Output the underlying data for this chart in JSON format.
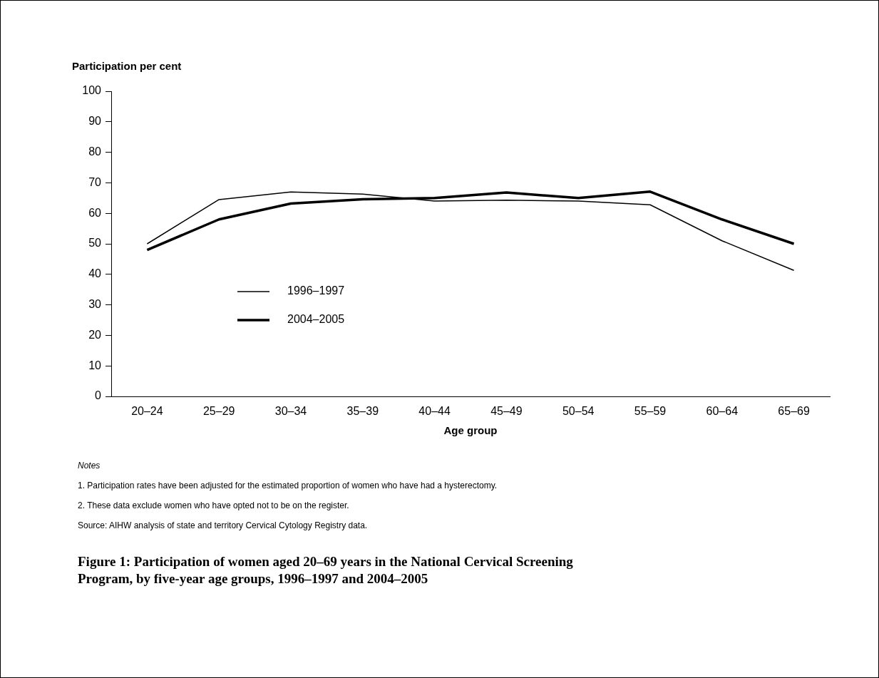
{
  "chart_data": {
    "type": "line",
    "title": "Figure 1: Participation of women aged 20–69 years in the National Cervical Screening Program, by five-year age groups, 1996–1997 and 2004–2005",
    "ylabel": "Participation per cent",
    "xlabel": "Age group",
    "categories": [
      "20–24",
      "25–29",
      "30–34",
      "35–39",
      "40–44",
      "45–49",
      "50–54",
      "55–59",
      "60–64",
      "65–69"
    ],
    "series": [
      {
        "name": "1996–1997",
        "color": "#000000",
        "values": [
          50,
          64.5,
          67,
          66.3,
          64,
          64.3,
          64,
          62.8,
          51,
          41.3
        ]
      },
      {
        "name": "2004–2005",
        "color": "#000000",
        "values": [
          48,
          58,
          63.2,
          64.6,
          65,
          66.8,
          65,
          67.1,
          58,
          50
        ]
      }
    ],
    "ylim": [
      0,
      100
    ],
    "yticks": [
      0,
      10,
      20,
      30,
      40,
      50,
      60,
      70,
      80,
      90,
      100
    ],
    "grid": false,
    "legend": "left",
    "marker": "none",
    "line_style": "solid",
    "annotations": [
      "Notes",
      "1. Participation rates have been adjusted for the estimated proportion of women who have had a hysterectomy.",
      "2. These data exclude women who have opted not to be on the register.",
      "Source: AIHW analysis of state and territory Cervical Cytology Registry data."
    ]
  }
}
